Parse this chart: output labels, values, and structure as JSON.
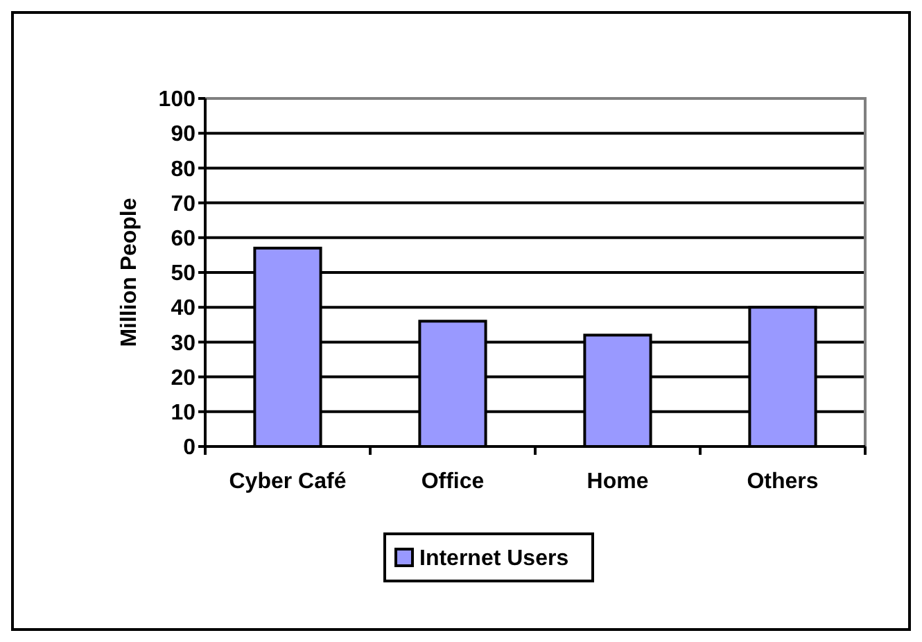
{
  "chart_data": {
    "type": "bar",
    "ylabel": "Million People",
    "categories": [
      "Cyber Café",
      "Office",
      "Home",
      "Others"
    ],
    "series": [
      {
        "name": "Internet Users",
        "color": "#9999ff",
        "values": [
          57,
          36,
          32,
          40
        ]
      }
    ],
    "ylim": [
      0,
      100
    ],
    "yticks": [
      0,
      10,
      20,
      30,
      40,
      50,
      60,
      70,
      80,
      90,
      100
    ],
    "grid": "y",
    "legend": "bottom"
  }
}
